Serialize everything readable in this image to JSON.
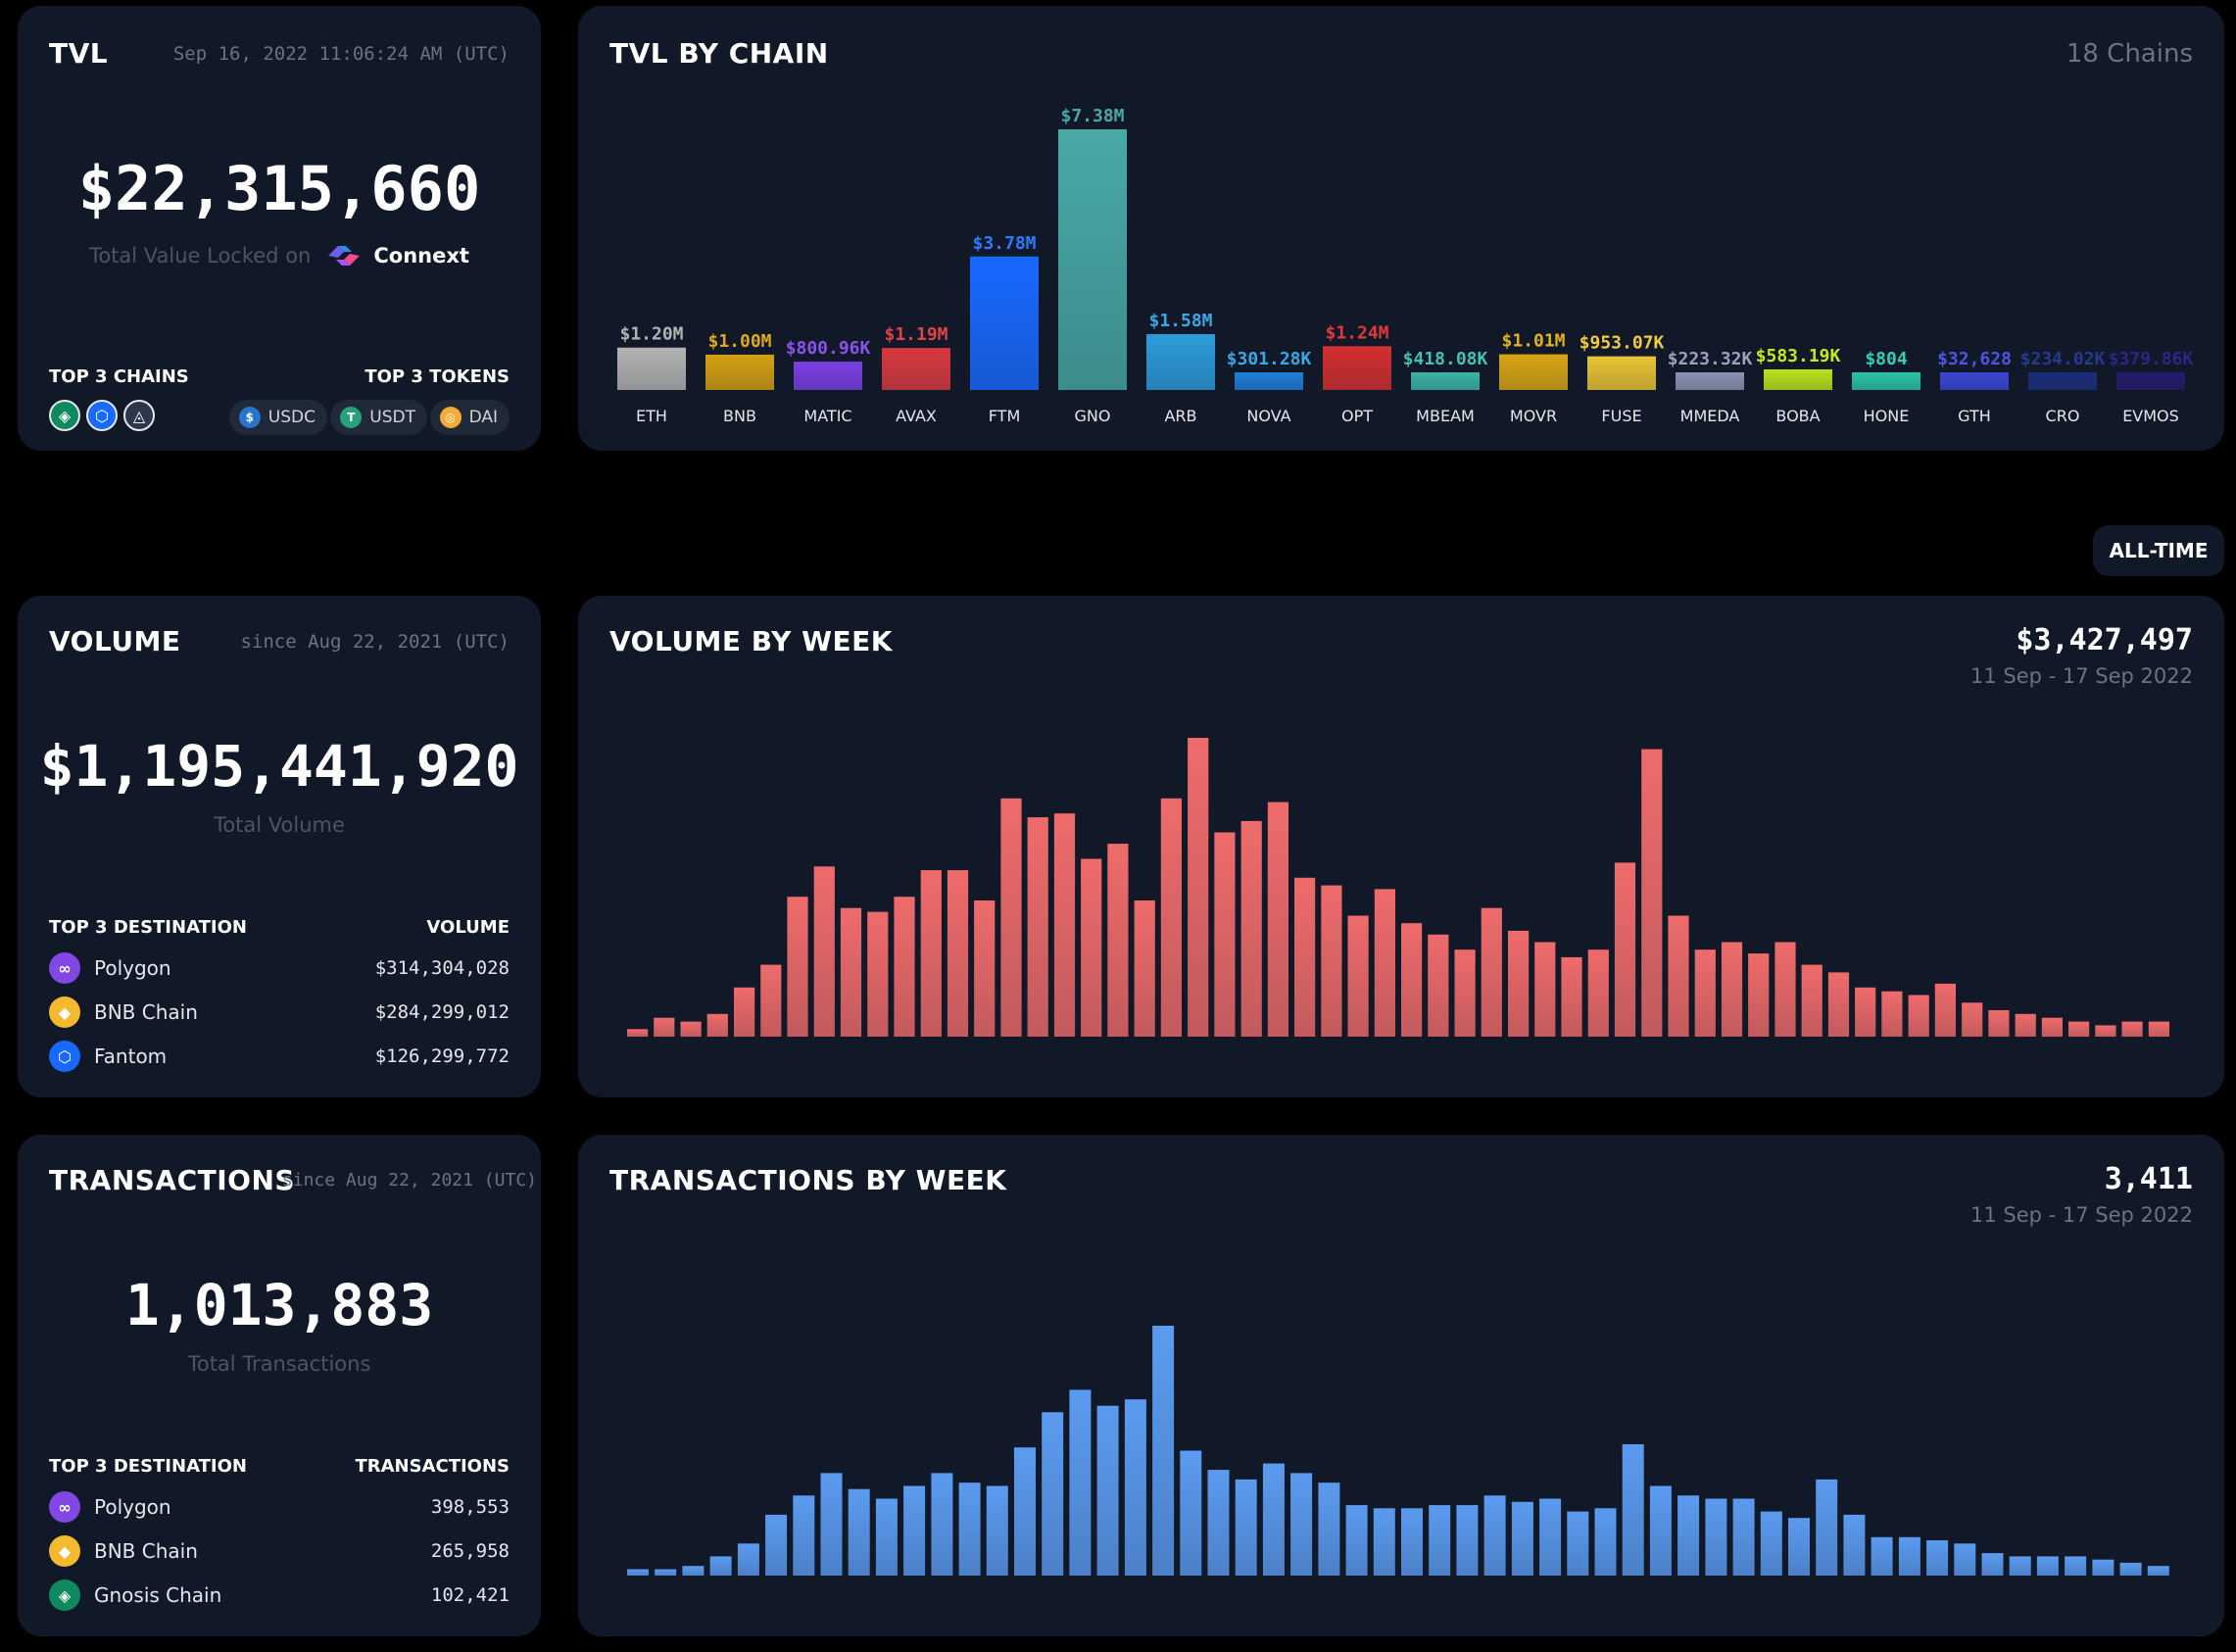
{
  "tvl": {
    "title": "TVL",
    "date": "Sep 16, 2022 11:06:24 AM (UTC)",
    "value": "$22,315,660",
    "subtitle": "Total Value Locked on",
    "brand": "Connext",
    "top_chains_label": "TOP 3 CHAINS",
    "top_tokens_label": "TOP 3 TOKENS",
    "tokens": [
      {
        "name": "USDC",
        "color": "#2775ca",
        "glyph": "$"
      },
      {
        "name": "USDT",
        "color": "#26a17b",
        "glyph": "T"
      },
      {
        "name": "DAI",
        "color": "#f5ac37",
        "glyph": "◎"
      }
    ],
    "chains": [
      {
        "icon": "gnosis-icon",
        "color": "#0f8a5f",
        "glyph": "◈"
      },
      {
        "icon": "fantom-icon",
        "color": "#1969ff",
        "glyph": "⬡"
      },
      {
        "icon": "arbitrum-icon",
        "color": "#2d374b",
        "glyph": "◬"
      }
    ]
  },
  "tvl_by_chain": {
    "title": "TVL BY CHAIN",
    "count": "18 Chains"
  },
  "period_button": "ALL-TIME",
  "volume": {
    "title": "VOLUME",
    "date": "since Aug 22, 2021 (UTC)",
    "value": "$1,195,441,920",
    "subtitle": "Total Volume",
    "dest_label": "TOP 3 DESTINATION",
    "metric_label": "VOLUME",
    "rows": [
      {
        "name": "Polygon",
        "value": "$314,304,028",
        "color": "#8247e5",
        "glyph": "∞"
      },
      {
        "name": "BNB Chain",
        "value": "$284,299,012",
        "color": "#f3ba2f",
        "glyph": "◆"
      },
      {
        "name": "Fantom",
        "value": "$126,299,772",
        "color": "#1969ff",
        "glyph": "⬡"
      }
    ]
  },
  "volume_by_week": {
    "title": "VOLUME BY WEEK",
    "value": "$3,427,497",
    "range": "11 Sep - 17 Sep 2022"
  },
  "transactions": {
    "title": "TRANSACTIONS",
    "date": "since Aug 22, 2021 (UTC)",
    "value": "1,013,883",
    "subtitle": "Total Transactions",
    "dest_label": "TOP 3 DESTINATION",
    "metric_label": "TRANSACTIONS",
    "rows": [
      {
        "name": "Polygon",
        "value": "398,553",
        "color": "#8247e5",
        "glyph": "∞"
      },
      {
        "name": "BNB Chain",
        "value": "265,958",
        "color": "#f3ba2f",
        "glyph": "◆"
      },
      {
        "name": "Gnosis Chain",
        "value": "102,421",
        "color": "#0f8a5f",
        "glyph": "◈"
      }
    ]
  },
  "transactions_by_week": {
    "title": "TRANSACTIONS BY WEEK",
    "value": "3,411",
    "range": "11 Sep - 17 Sep 2022"
  },
  "chart_data": [
    {
      "type": "bar",
      "title": "TVL BY CHAIN",
      "categories": [
        "ETH",
        "BNB",
        "MATIC",
        "AVAX",
        "FTM",
        "GNO",
        "ARB",
        "NOVA",
        "OPT",
        "MBEAM",
        "MOVR",
        "FUSE",
        "MMEDA",
        "BOBA",
        "HONE",
        "GTH",
        "CRO",
        "EVMOS"
      ],
      "values": [
        1200000,
        1000000,
        800960,
        1190000,
        3780000,
        7380000,
        1580000,
        301280,
        1240000,
        418080,
        1010000,
        953070,
        223320,
        583190,
        804,
        32628,
        234020,
        379860
      ],
      "labels": [
        "$1.20M",
        "$1.00M",
        "$800.96K",
        "$1.19M",
        "$3.78M",
        "$7.38M",
        "$1.58M",
        "$301.28K",
        "$1.24M",
        "$418.08K",
        "$1.01M",
        "$953.07K",
        "$223.32K",
        "$583.19K",
        "$804",
        "$32,628",
        "$234.02K",
        "$379.86K"
      ],
      "colors": [
        "#b3b3b3",
        "#d4a012",
        "#7b3fe4",
        "#d8393f",
        "#1969ff",
        "#48a9a6",
        "#2d9cdb",
        "#1f7fd6",
        "#d32f2f",
        "#3bb3a5",
        "#d9a514",
        "#e9c434",
        "#8b93b3",
        "#b9e21a",
        "#2bc3a8",
        "#3b46d4",
        "#1b2f7a",
        "#231c6e"
      ],
      "label_colors": [
        "#b3b3b3",
        "#e0a81b",
        "#8a52ef",
        "#e04448",
        "#2d7bff",
        "#48a9a6",
        "#3aa8e6",
        "#3aa8e6",
        "#e03a3a",
        "#45c2b2",
        "#e5b11d",
        "#f1cc3b",
        "#9aa2c0",
        "#c3ea23",
        "#33d1b4",
        "#4b56e4",
        "#253b8f",
        "#2d2589"
      ],
      "ylim": [
        0,
        7380000
      ]
    },
    {
      "type": "bar",
      "title": "VOLUME BY WEEK",
      "values": [
        2,
        5,
        4,
        6,
        13,
        19,
        37,
        45,
        34,
        33,
        37,
        44,
        44,
        36,
        63,
        58,
        59,
        47,
        51,
        36,
        63,
        79,
        54,
        57,
        62,
        42,
        40,
        32,
        39,
        30,
        27,
        23,
        34,
        28,
        25,
        21,
        23,
        46,
        76,
        32,
        23,
        25,
        22,
        25,
        19,
        17,
        13,
        12,
        11,
        14,
        9,
        7,
        6,
        5,
        4,
        3,
        4,
        4
      ],
      "color": "#ef6b6b"
    },
    {
      "type": "bar",
      "title": "TRANSACTIONS BY WEEK",
      "values": [
        2,
        2,
        3,
        6,
        10,
        19,
        25,
        32,
        27,
        24,
        28,
        32,
        29,
        28,
        40,
        51,
        58,
        53,
        55,
        78,
        39,
        33,
        30,
        35,
        32,
        29,
        22,
        21,
        21,
        22,
        22,
        25,
        23,
        24,
        20,
        21,
        41,
        28,
        25,
        24,
        24,
        20,
        18,
        30,
        19,
        12,
        12,
        11,
        10,
        7,
        6,
        6,
        6,
        5,
        4,
        3
      ],
      "color": "#5b9bf0"
    }
  ]
}
